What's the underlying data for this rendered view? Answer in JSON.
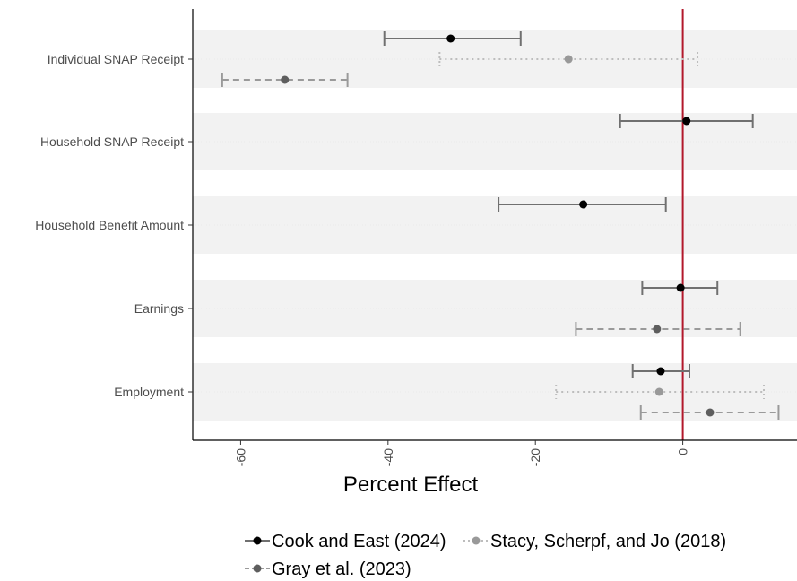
{
  "chart_data": {
    "type": "forest",
    "title": "",
    "xlabel": "Percent Effect",
    "ylabel": "",
    "xlim": [
      -66.5,
      15.5
    ],
    "xticks": [
      -60,
      -40,
      -20,
      0
    ],
    "xtick_labels": [
      "-60",
      "-40",
      "-20",
      "0"
    ],
    "reference_line": {
      "x": 0,
      "color": "#b2182b"
    },
    "categories": [
      "Individual SNAP Receipt",
      "Household SNAP Receipt",
      "Household Benefit Amount",
      "Earnings",
      "Employment"
    ],
    "series": [
      {
        "name": "Cook and East (2024)",
        "color": "#000000",
        "line_color": "#707070",
        "linestyle": "solid",
        "points": [
          {
            "category": "Individual SNAP Receipt",
            "estimate": -31.5,
            "lower": -40.5,
            "upper": -22.0
          },
          {
            "category": "Household SNAP Receipt",
            "estimate": 0.5,
            "lower": -8.5,
            "upper": 9.5
          },
          {
            "category": "Household Benefit Amount",
            "estimate": -13.5,
            "lower": -25.0,
            "upper": -2.3
          },
          {
            "category": "Earnings",
            "estimate": -0.3,
            "lower": -5.5,
            "upper": 4.7
          },
          {
            "category": "Employment",
            "estimate": -3.0,
            "lower": -6.8,
            "upper": 0.9
          }
        ]
      },
      {
        "name": "Stacy, Scherpf, and Jo (2018)",
        "color": "#999999",
        "line_color": "#bdbdbd",
        "linestyle": "dotted",
        "points": [
          {
            "category": "Individual SNAP Receipt",
            "estimate": -15.5,
            "lower": -33.0,
            "upper": 2.0
          },
          {
            "category": "Employment",
            "estimate": -3.2,
            "lower": -17.2,
            "upper": 11.0
          }
        ]
      },
      {
        "name": "Gray et al. (2023)",
        "color": "#5e5e5e",
        "line_color": "#9a9a9a",
        "linestyle": "dashed",
        "points": [
          {
            "category": "Individual SNAP Receipt",
            "estimate": -54.0,
            "lower": -62.5,
            "upper": -45.5
          },
          {
            "category": "Earnings",
            "estimate": -3.5,
            "lower": -14.5,
            "upper": 7.8
          },
          {
            "category": "Employment",
            "estimate": 3.7,
            "lower": -5.7,
            "upper": 13.0
          }
        ]
      }
    ],
    "legend": {
      "position": "bottom"
    },
    "grid": true,
    "band_color": "#f2f2f2"
  }
}
